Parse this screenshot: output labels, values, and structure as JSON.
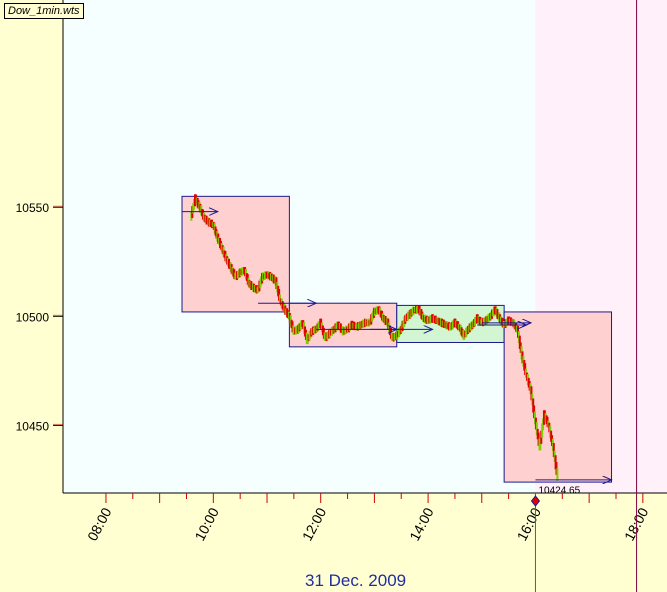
{
  "file_label": "Dow_1min.wts",
  "date_label": "31 Dec. 2009",
  "price_label": "10424.65",
  "colors": {
    "background": "#ffffd2",
    "plot_area": "#f5ffff",
    "after_hours": "#fff0fa",
    "bear_box": "#ffd0d0",
    "bull_box": "#d2f5d2",
    "box_border": "#1a1a90",
    "arrow": "#1a1a90",
    "candle_down": "#e00000",
    "candle_up": "#7fd000",
    "grid_tick": "#d00000",
    "axis_text": "#000000",
    "date_text": "#1f2ea0",
    "marker": "#e00000",
    "session_line": "#800040"
  },
  "chart_data": {
    "type": "candlestick",
    "title": "",
    "xlabel": "31 Dec. 2009",
    "ylabel": "",
    "x_ticks": [
      "08:00",
      "10:00",
      "12:00",
      "14:00",
      "16:00",
      "18:00"
    ],
    "y_ticks": [
      10450,
      10500,
      10550
    ],
    "xlim": [
      "07:12",
      "18:27"
    ],
    "ylim": [
      10419,
      10645
    ],
    "last_price": 10424.65,
    "last_time": "16:00",
    "after_hours_start": "16:00",
    "session_end": "17:53",
    "boxes": [
      {
        "type": "bear",
        "x0": "09:25",
        "x1": "11:25",
        "y0": 10502,
        "y1": 10555
      },
      {
        "type": "bear",
        "x0": "11:25",
        "x1": "13:25",
        "y0": 10486,
        "y1": 10506
      },
      {
        "type": "bull",
        "x0": "13:25",
        "x1": "15:25",
        "y0": 10488,
        "y1": 10505
      },
      {
        "type": "bear",
        "x0": "15:25",
        "x1": "17:25",
        "y0": 10424,
        "y1": 10502
      }
    ],
    "arrows": [
      {
        "x0": "09:25",
        "x1": "10:05",
        "y": 10548
      },
      {
        "x0": "10:50",
        "x1": "11:55",
        "y": 10506
      },
      {
        "x0": "11:55",
        "x1": "13:25",
        "y": 10494
      },
      {
        "x0": "12:55",
        "x1": "14:05",
        "y": 10494
      },
      {
        "x0": "14:55",
        "x1": "15:50",
        "y": 10496
      },
      {
        "x0": "15:00",
        "x1": "15:55",
        "y": 10497
      },
      {
        "x0": "16:00",
        "x1": "17:25",
        "y": 10425
      }
    ],
    "price_path": [
      [
        "09:35",
        10545
      ],
      [
        "09:40",
        10554
      ],
      [
        "09:45",
        10550
      ],
      [
        "09:50",
        10545
      ],
      [
        "09:55",
        10543
      ],
      [
        "10:00",
        10542
      ],
      [
        "10:05",
        10536
      ],
      [
        "10:10",
        10531
      ],
      [
        "10:15",
        10526
      ],
      [
        "10:20",
        10522
      ],
      [
        "10:25",
        10518
      ],
      [
        "10:30",
        10520
      ],
      [
        "10:35",
        10521
      ],
      [
        "10:40",
        10515
      ],
      [
        "10:45",
        10513
      ],
      [
        "10:50",
        10512
      ],
      [
        "10:55",
        10518
      ],
      [
        "11:00",
        10519
      ],
      [
        "11:05",
        10518
      ],
      [
        "11:10",
        10516
      ],
      [
        "11:15",
        10507
      ],
      [
        "11:20",
        10503
      ],
      [
        "11:25",
        10500
      ],
      [
        "11:30",
        10493
      ],
      [
        "11:35",
        10494
      ],
      [
        "11:40",
        10497
      ],
      [
        "11:45",
        10489
      ],
      [
        "11:50",
        10493
      ],
      [
        "11:55",
        10494
      ],
      [
        "12:00",
        10497
      ],
      [
        "12:05",
        10490
      ],
      [
        "12:10",
        10492
      ],
      [
        "12:15",
        10494
      ],
      [
        "12:20",
        10496
      ],
      [
        "12:25",
        10493
      ],
      [
        "12:30",
        10494
      ],
      [
        "12:35",
        10496
      ],
      [
        "12:40",
        10495
      ],
      [
        "12:45",
        10496
      ],
      [
        "12:50",
        10497
      ],
      [
        "12:55",
        10497
      ],
      [
        "13:00",
        10502
      ],
      [
        "13:05",
        10503
      ],
      [
        "13:10",
        10499
      ],
      [
        "13:15",
        10497
      ],
      [
        "13:20",
        10490
      ],
      [
        "13:25",
        10491
      ],
      [
        "13:30",
        10494
      ],
      [
        "13:35",
        10499
      ],
      [
        "13:40",
        10501
      ],
      [
        "13:45",
        10503
      ],
      [
        "13:50",
        10503
      ],
      [
        "13:55",
        10499
      ],
      [
        "14:00",
        10498
      ],
      [
        "14:05",
        10499
      ],
      [
        "14:10",
        10498
      ],
      [
        "14:15",
        10497
      ],
      [
        "14:20",
        10496
      ],
      [
        "14:25",
        10495
      ],
      [
        "14:30",
        10497
      ],
      [
        "14:35",
        10495
      ],
      [
        "14:40",
        10491
      ],
      [
        "14:45",
        10494
      ],
      [
        "14:50",
        10496
      ],
      [
        "14:55",
        10499
      ],
      [
        "15:00",
        10497
      ],
      [
        "15:05",
        10498
      ],
      [
        "15:10",
        10500
      ],
      [
        "15:15",
        10503
      ],
      [
        "15:20",
        10499
      ],
      [
        "15:25",
        10496
      ],
      [
        "15:30",
        10498
      ],
      [
        "15:35",
        10497
      ],
      [
        "15:40",
        10494
      ],
      [
        "15:45",
        10482
      ],
      [
        "15:50",
        10473
      ],
      [
        "15:55",
        10466
      ],
      [
        "16:00",
        10452
      ],
      [
        "16:05",
        10440
      ],
      [
        "16:10",
        10455
      ],
      [
        "16:15",
        10450
      ],
      [
        "16:20",
        10440
      ],
      [
        "16:25",
        10426
      ]
    ]
  }
}
